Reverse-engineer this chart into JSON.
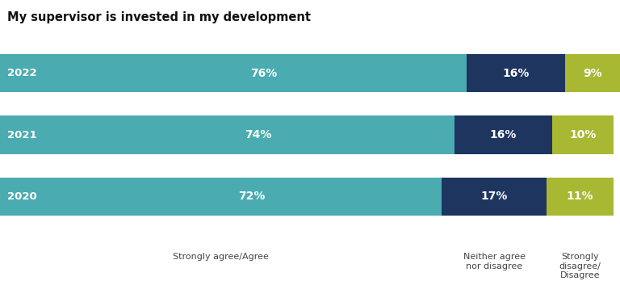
{
  "title": "My supervisor is invested in my development",
  "years": [
    "2022",
    "2021",
    "2020"
  ],
  "agree": [
    76,
    74,
    72
  ],
  "neutral": [
    16,
    16,
    17
  ],
  "disagree": [
    9,
    10,
    11
  ],
  "color_agree": "#4aacb0",
  "color_neutral": "#1e3560",
  "color_disagree": "#a8b832",
  "label_agree": "Strongly agree/Agree",
  "label_neutral": "Neither agree\nnor disagree",
  "label_disagree": "Strongly\ndisagree/\nDisagree",
  "text_color": "#ffffff",
  "title_fontsize": 10.5,
  "bar_label_fontsize": 10,
  "year_label_fontsize": 9.5,
  "axis_label_fontsize": 8,
  "background_color": "#ffffff",
  "bar_height": 0.62,
  "total": 101
}
